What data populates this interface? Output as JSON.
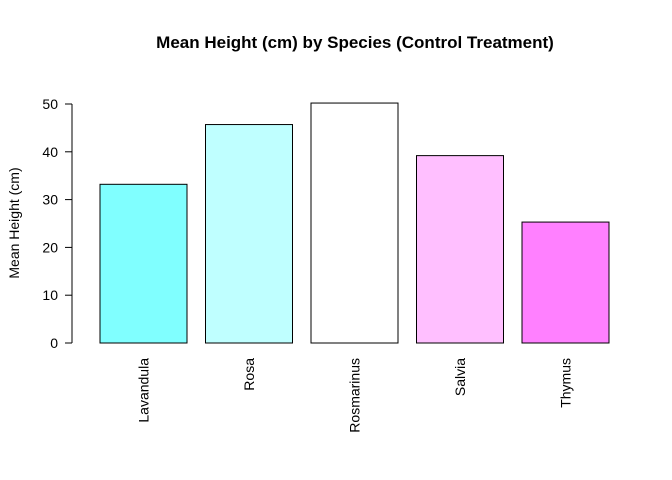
{
  "chart_data": {
    "type": "bar",
    "title": "Mean Height (cm) by Species (Control Treatment)",
    "xlabel": "",
    "ylabel": "Mean Height (cm)",
    "categories": [
      "Lavandula",
      "Rosa",
      "Rosmarinus",
      "Salvia",
      "Thymus"
    ],
    "values": [
      33.2,
      45.7,
      50.2,
      39.2,
      25.3
    ],
    "colors": [
      "#80FFFF",
      "#BFFFFF",
      "#FFFFFF",
      "#FFBFFF",
      "#FF80FF"
    ],
    "ylim": [
      0,
      50
    ],
    "yticks": [
      0,
      10,
      20,
      30,
      40,
      50
    ],
    "grid": false,
    "x_tick_labels_rotated": true
  }
}
